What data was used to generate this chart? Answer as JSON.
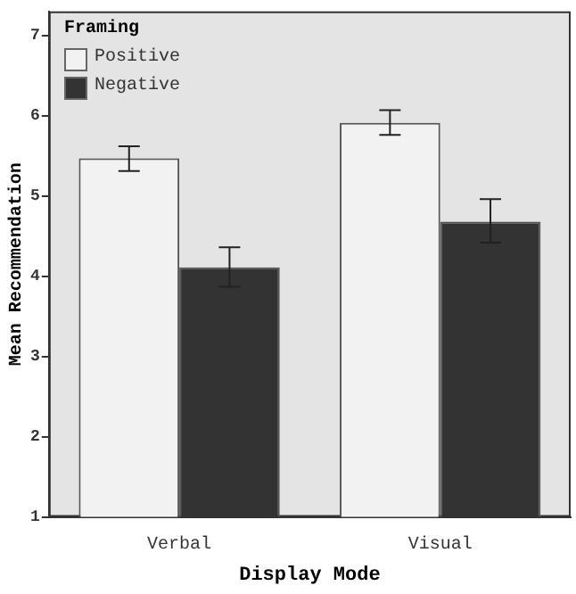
{
  "chart_data": {
    "type": "bar",
    "xlabel": "Display Mode",
    "ylabel": "Mean Recommendation",
    "legend_title": "Framing",
    "legend": "top left",
    "grid": false,
    "categories": [
      "Verbal",
      "Visual"
    ],
    "series": [
      {
        "name": "Positive",
        "color": "#f2f2f2",
        "values": [
          5.47,
          5.91
        ],
        "errors": [
          [
            5.31,
            5.62
          ],
          [
            5.76,
            6.07
          ]
        ]
      },
      {
        "name": "Negative",
        "color": "#333333",
        "values": [
          4.11,
          4.68
        ],
        "errors": [
          [
            3.87,
            4.36
          ],
          [
            4.42,
            4.96
          ]
        ]
      }
    ],
    "ylim": [
      1,
      7.3
    ],
    "yticks": [
      1,
      2,
      3,
      4,
      5,
      6,
      7
    ]
  }
}
